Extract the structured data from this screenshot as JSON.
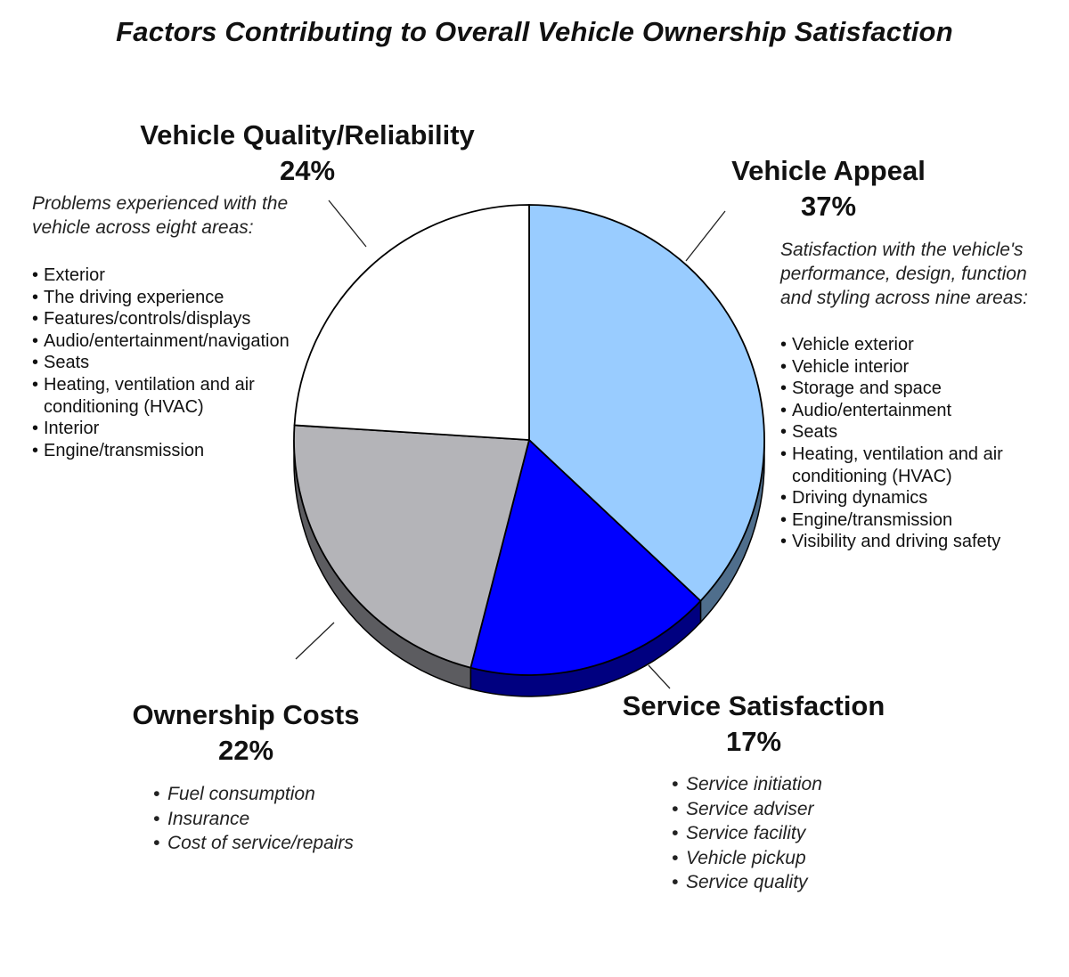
{
  "title": "Factors Contributing to Overall Vehicle Ownership Satisfaction",
  "chart_data": {
    "type": "pie",
    "title": "Factors Contributing to Overall Vehicle Ownership Satisfaction",
    "start": "12 o'clock, clockwise",
    "style": "3d",
    "slices": [
      {
        "name": "Vehicle Appeal",
        "value": 37,
        "label": "37%",
        "color": "#99ccff",
        "side_color": "#4f6e8c"
      },
      {
        "name": "Service Satisfaction",
        "value": 17,
        "label": "17%",
        "color": "#0000ff",
        "side_color": "#000080"
      },
      {
        "name": "Ownership Costs",
        "value": 22,
        "label": "22%",
        "color": "#b4b4b8",
        "side_color": "#5c5c60"
      },
      {
        "name": "Vehicle Quality/Reliability",
        "value": 24,
        "label": "24%",
        "color": "#ffffff",
        "side_color": "#cccccc"
      }
    ]
  },
  "quality": {
    "name": "Vehicle Quality/Reliability",
    "pct": "24%",
    "desc_line1": "Problems experienced with the",
    "desc_line2": "vehicle across eight areas:",
    "items": [
      "Exterior",
      "The driving experience",
      "Features/controls/displays",
      "Audio/entertainment/navigation",
      "Seats",
      "Heating, ventilation and air conditioning (HVAC)",
      "Interior",
      "Engine/transmission"
    ]
  },
  "appeal": {
    "name": "Vehicle Appeal",
    "pct": "37%",
    "desc_line1": "Satisfaction with the vehicle's",
    "desc_line2": "performance, design, function",
    "desc_line3": "and styling across nine areas:",
    "items": [
      "Vehicle exterior",
      "Vehicle interior",
      "Storage and space",
      "Audio/entertainment",
      "Seats",
      "Heating, ventilation and air conditioning (HVAC)",
      "Driving dynamics",
      "Engine/transmission",
      "Visibility and driving safety"
    ]
  },
  "costs": {
    "name": "Ownership Costs",
    "pct": "22%",
    "items": [
      "Fuel consumption",
      "Insurance",
      "Cost of service/repairs"
    ]
  },
  "service": {
    "name": "Service Satisfaction",
    "pct": "17%",
    "items": [
      "Service initiation",
      "Service adviser",
      "Service facility",
      "Vehicle pickup",
      "Service quality"
    ]
  }
}
